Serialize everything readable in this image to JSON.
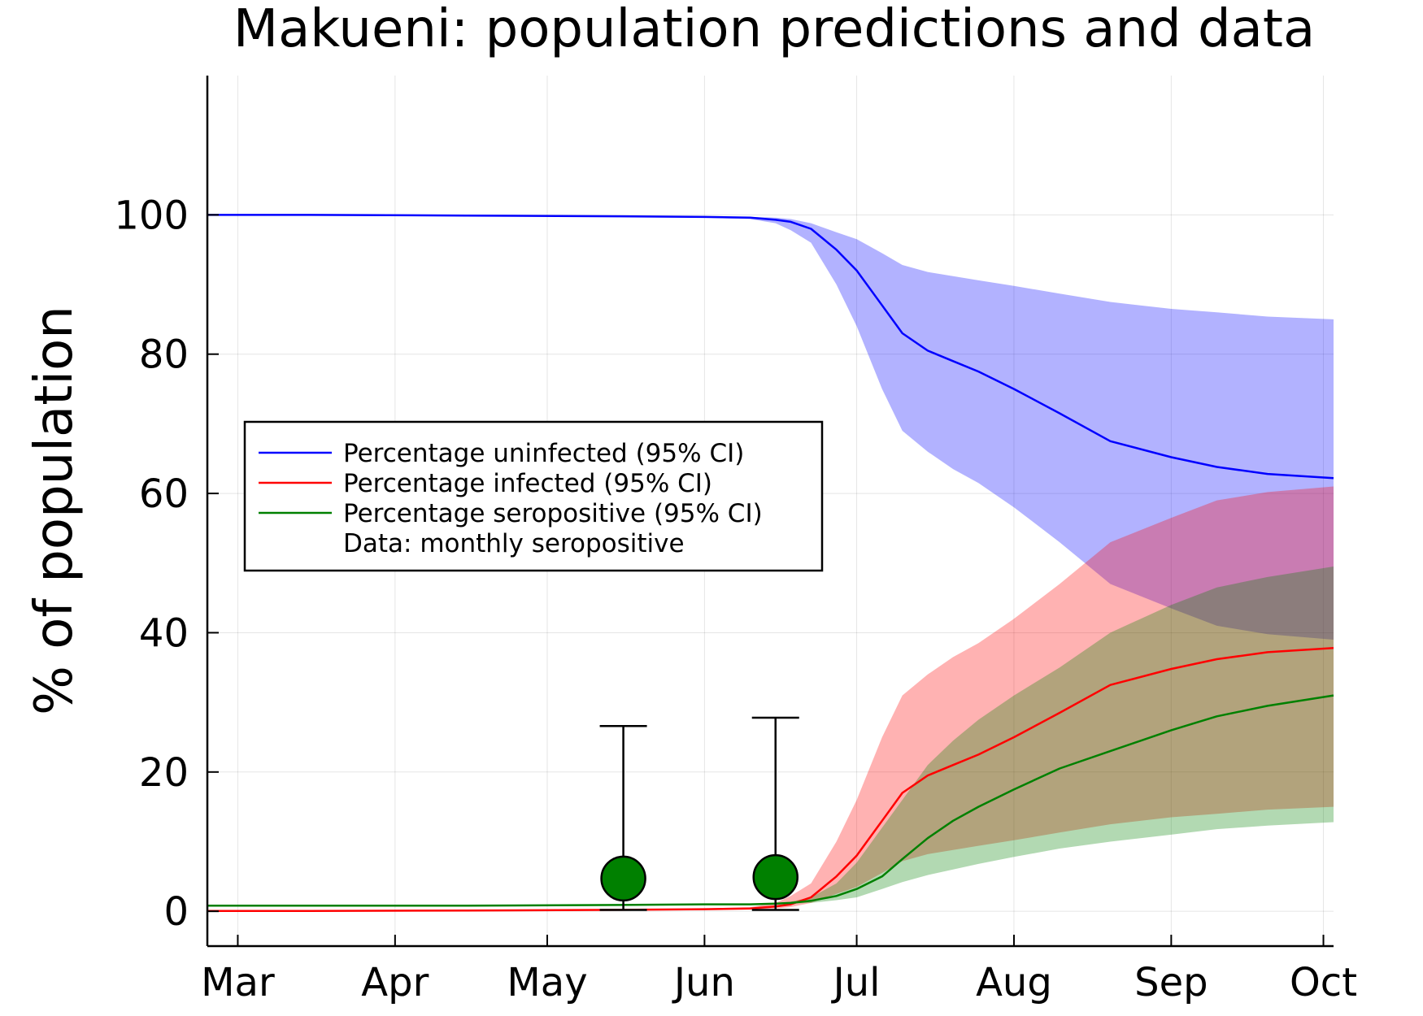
{
  "chart_data": {
    "type": "line",
    "title": "Makueni: population predictions and data",
    "xlabel": "",
    "ylabel": "% of population",
    "x_axis": {
      "type": "date",
      "start": "2020-02-24",
      "end": "2020-10-03"
    },
    "ylim": [
      -5,
      120
    ],
    "x_ticks": [
      {
        "label": "Mar",
        "date": "2020-03-01"
      },
      {
        "label": "Apr",
        "date": "2020-04-01"
      },
      {
        "label": "May",
        "date": "2020-05-01"
      },
      {
        "label": "Jun",
        "date": "2020-06-01"
      },
      {
        "label": "Jul",
        "date": "2020-07-01"
      },
      {
        "label": "Aug",
        "date": "2020-08-01"
      },
      {
        "label": "Sep",
        "date": "2020-09-01"
      },
      {
        "label": "Oct",
        "date": "2020-10-01"
      }
    ],
    "y_ticks": [
      0,
      20,
      40,
      60,
      80,
      100
    ],
    "grid": true,
    "legend_position": "middle-left",
    "series": [
      {
        "name": "Percentage uninfected (95% CI)",
        "color": "#0000ff",
        "x": [
          "2020-02-24",
          "2020-03-15",
          "2020-04-15",
          "2020-05-15",
          "2020-06-01",
          "2020-06-10",
          "2020-06-15",
          "2020-06-18",
          "2020-06-22",
          "2020-06-27",
          "2020-07-01",
          "2020-07-06",
          "2020-07-10",
          "2020-07-15",
          "2020-07-20",
          "2020-07-25",
          "2020-08-01",
          "2020-08-10",
          "2020-08-20",
          "2020-09-01",
          "2020-09-10",
          "2020-09-20",
          "2020-10-03"
        ],
        "y": [
          100,
          100,
          99.9,
          99.8,
          99.7,
          99.6,
          99.3,
          99.0,
          98.0,
          95.0,
          92.0,
          87.0,
          83.0,
          80.5,
          79.0,
          77.5,
          75.0,
          71.5,
          67.5,
          65.2,
          63.8,
          62.8,
          62.2
        ],
        "lower": [
          100,
          100,
          99.9,
          99.8,
          99.6,
          99.4,
          98.8,
          97.8,
          96.0,
          90.0,
          84.0,
          75.0,
          69.0,
          66.0,
          63.5,
          61.5,
          58.0,
          53.0,
          47.0,
          43.5,
          41.0,
          39.8,
          39.0
        ],
        "upper": [
          100,
          100,
          99.9,
          99.8,
          99.8,
          99.7,
          99.6,
          99.4,
          98.8,
          97.5,
          96.5,
          94.5,
          92.8,
          91.8,
          91.2,
          90.6,
          89.8,
          88.7,
          87.5,
          86.5,
          86.0,
          85.4,
          85.0
        ]
      },
      {
        "name": "Percentage infected (95% CI)",
        "color": "#ff0000",
        "x": [
          "2020-02-24",
          "2020-03-15",
          "2020-04-15",
          "2020-05-15",
          "2020-06-01",
          "2020-06-10",
          "2020-06-15",
          "2020-06-18",
          "2020-06-22",
          "2020-06-27",
          "2020-07-01",
          "2020-07-06",
          "2020-07-10",
          "2020-07-15",
          "2020-07-20",
          "2020-07-25",
          "2020-08-01",
          "2020-08-10",
          "2020-08-20",
          "2020-09-01",
          "2020-09-10",
          "2020-09-20",
          "2020-10-03"
        ],
        "y": [
          0.05,
          0.05,
          0.1,
          0.2,
          0.3,
          0.4,
          0.7,
          1.0,
          2.0,
          5.0,
          8.0,
          13.0,
          17.0,
          19.5,
          21.0,
          22.5,
          25.0,
          28.5,
          32.5,
          34.8,
          36.2,
          37.2,
          37.8
        ],
        "lower": [
          0.05,
          0.05,
          0.1,
          0.2,
          0.2,
          0.3,
          0.4,
          0.6,
          1.2,
          2.5,
          3.5,
          5.5,
          7.2,
          8.2,
          8.8,
          9.4,
          10.2,
          11.3,
          12.5,
          13.5,
          14.0,
          14.6,
          15.0
        ],
        "upper": [
          0.05,
          0.05,
          0.1,
          0.2,
          0.4,
          0.6,
          1.2,
          2.2,
          4.0,
          10.0,
          16.0,
          25.0,
          31.0,
          34.0,
          36.5,
          38.5,
          42.0,
          47.0,
          53.0,
          56.5,
          59.0,
          60.2,
          61.0
        ]
      },
      {
        "name": "Percentage seropositive (95% CI)",
        "color": "#008000",
        "x": [
          "2020-02-24",
          "2020-03-15",
          "2020-04-15",
          "2020-05-15",
          "2020-06-01",
          "2020-06-10",
          "2020-06-15",
          "2020-06-18",
          "2020-06-22",
          "2020-06-27",
          "2020-07-01",
          "2020-07-06",
          "2020-07-10",
          "2020-07-15",
          "2020-07-20",
          "2020-07-25",
          "2020-08-01",
          "2020-08-10",
          "2020-08-20",
          "2020-09-01",
          "2020-09-10",
          "2020-09-20",
          "2020-10-03"
        ],
        "y": [
          0.8,
          0.8,
          0.8,
          0.9,
          1.0,
          1.0,
          1.1,
          1.2,
          1.5,
          2.2,
          3.2,
          5.0,
          7.5,
          10.5,
          13.0,
          15.0,
          17.5,
          20.5,
          23.0,
          26.0,
          28.0,
          29.5,
          31.0
        ],
        "lower": [
          0.8,
          0.8,
          0.8,
          0.9,
          1.0,
          1.0,
          1.0,
          1.1,
          1.2,
          1.6,
          2.0,
          3.2,
          4.2,
          5.2,
          6.0,
          6.8,
          7.8,
          9.0,
          10.0,
          11.0,
          11.8,
          12.3,
          12.8
        ],
        "upper": [
          0.8,
          0.8,
          0.8,
          0.9,
          1.0,
          1.0,
          1.2,
          1.4,
          2.0,
          4.0,
          7.0,
          12.0,
          16.0,
          21.0,
          24.5,
          27.5,
          31.0,
          35.0,
          40.0,
          44.0,
          46.5,
          48.0,
          49.5
        ]
      }
    ],
    "data_points": {
      "name": "Data: monthly seropositive",
      "color": "#008000",
      "points": [
        {
          "x": "2020-05-16",
          "y": 4.7,
          "lower": 0.2,
          "upper": 26.6
        },
        {
          "x": "2020-06-15",
          "y": 4.9,
          "lower": 0.2,
          "upper": 27.8
        }
      ]
    }
  }
}
